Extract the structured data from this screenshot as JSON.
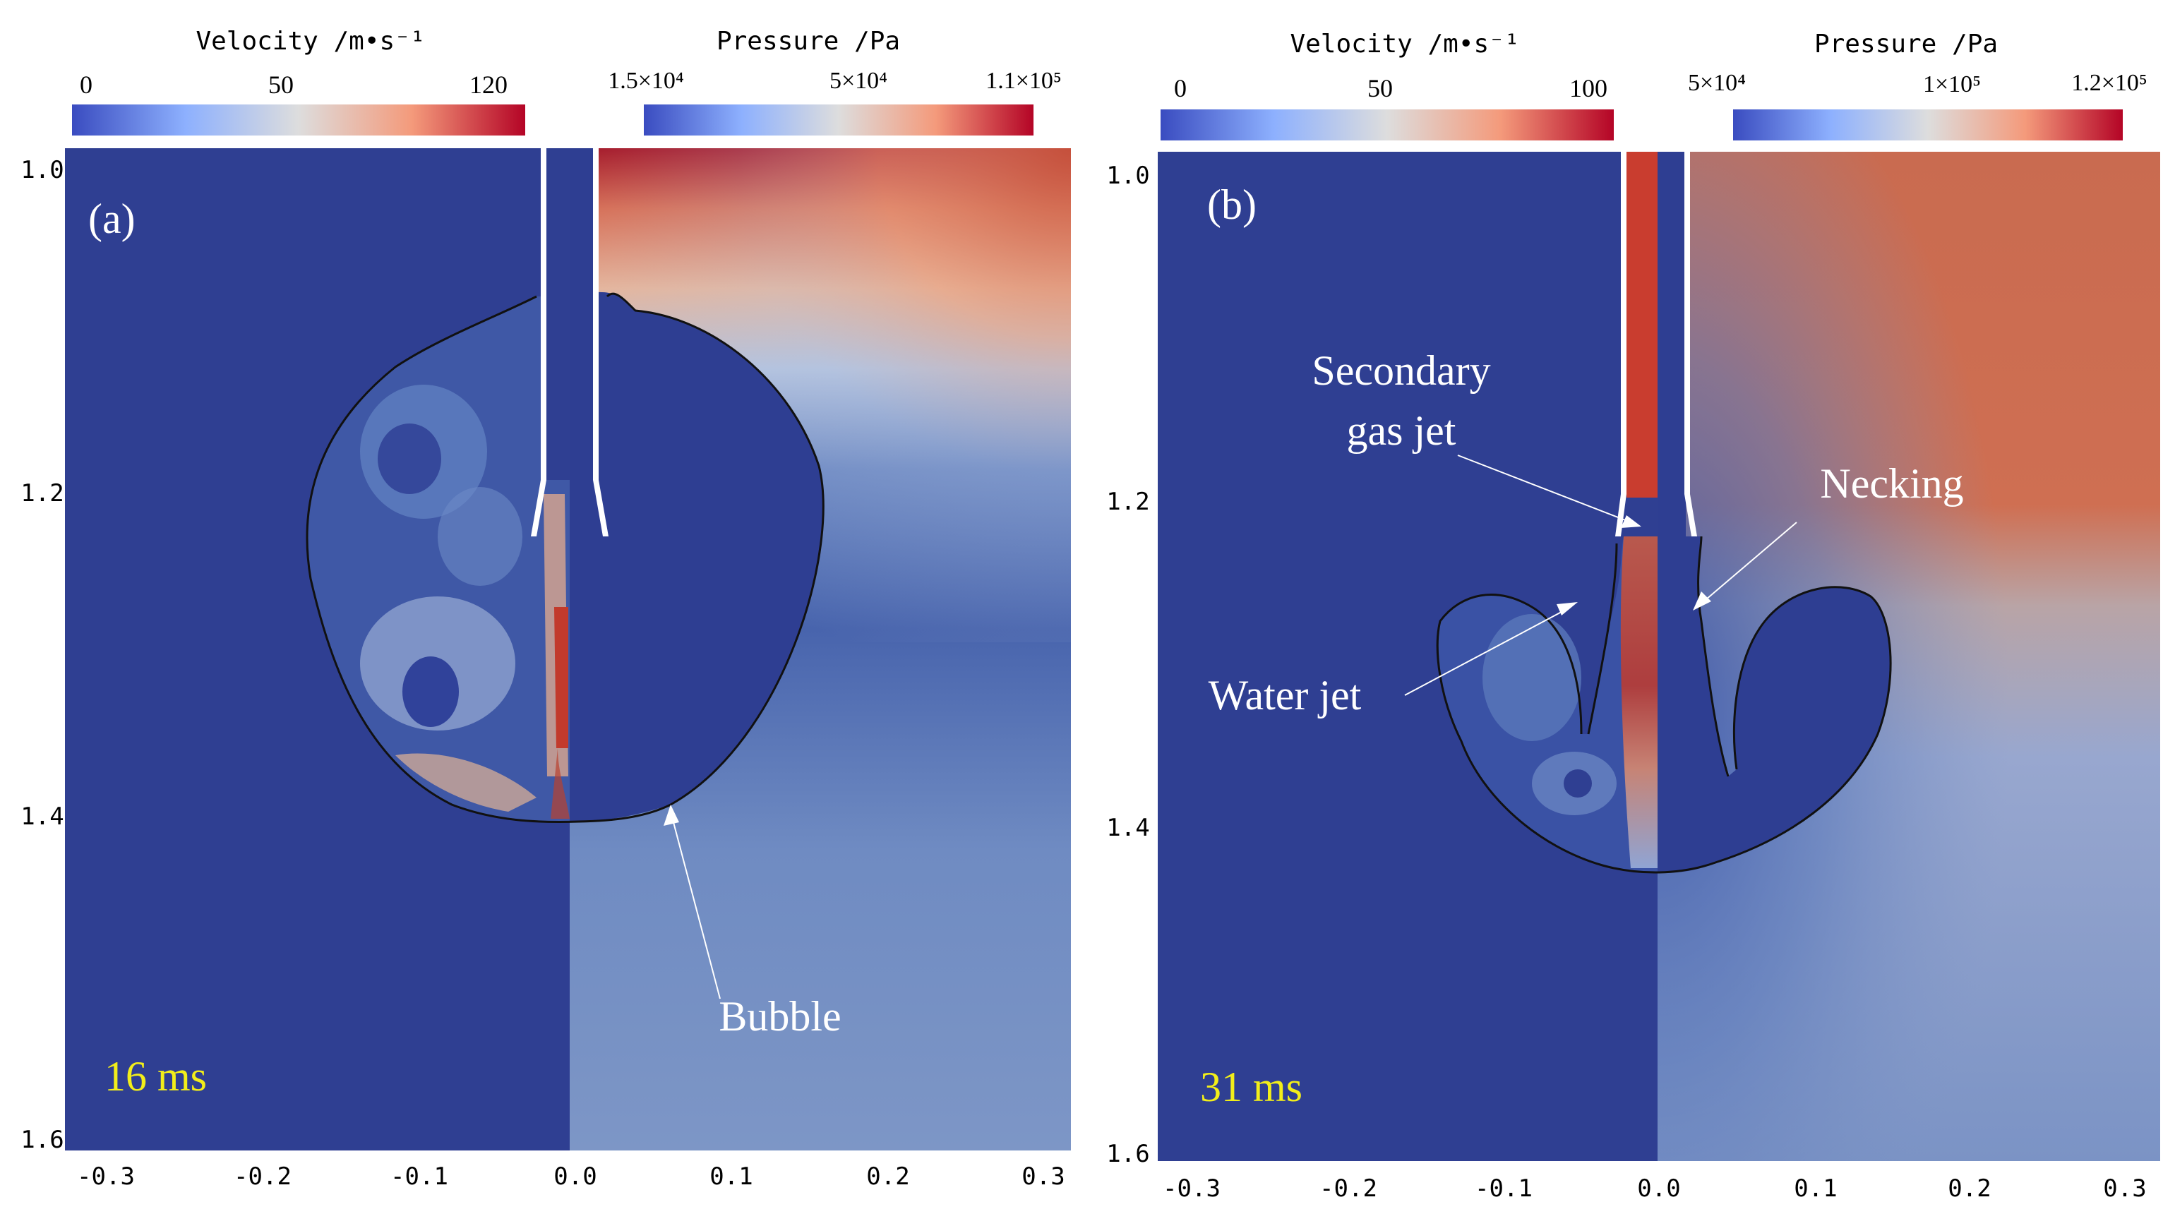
{
  "panels": [
    {
      "id": "a",
      "label": "(a)",
      "time": "16 ms",
      "velocity_bar": {
        "title": "Velocity /m•s⁻¹",
        "ticks": [
          "0",
          "50",
          "120"
        ]
      },
      "pressure_bar": {
        "title": "Pressure /Pa",
        "ticks": [
          "1.5×10⁴",
          "5×10⁴",
          "1.1×10⁵"
        ]
      },
      "y_ticks": [
        "1.0",
        "1.2",
        "1.4",
        "1.6"
      ],
      "x_ticks": [
        "-0.3",
        "-0.2",
        "-0.1",
        "0.0",
        "0.1",
        "0.2",
        "0.3"
      ],
      "annotations": {
        "bubble": "Bubble"
      }
    },
    {
      "id": "b",
      "label": "(b)",
      "time": "31 ms",
      "velocity_bar": {
        "title": "Velocity /m•s⁻¹",
        "ticks": [
          "0",
          "50",
          "100"
        ]
      },
      "pressure_bar": {
        "title": "Pressure /Pa",
        "ticks": [
          "5×10⁴",
          "1×10⁵",
          "1.2×10⁵"
        ]
      },
      "y_ticks": [
        "1.0",
        "1.2",
        "1.4",
        "1.6"
      ],
      "x_ticks": [
        "-0.3",
        "-0.2",
        "-0.1",
        "0.0",
        "0.1",
        "0.2",
        "0.3"
      ],
      "annotations": {
        "secondary_line1": "Secondary",
        "secondary_line2": "gas jet",
        "necking": "Necking",
        "water_jet": "Water jet"
      }
    }
  ],
  "colors": {
    "deep_blue": "#2f3f92",
    "mid_blue": "#4d6cb5",
    "light_blue": "#7f9ac7",
    "white_mid": "#dcdcdc",
    "orange": "#e28a67",
    "dark_red": "#a50d1c",
    "time_label": "#f2ee1a"
  }
}
